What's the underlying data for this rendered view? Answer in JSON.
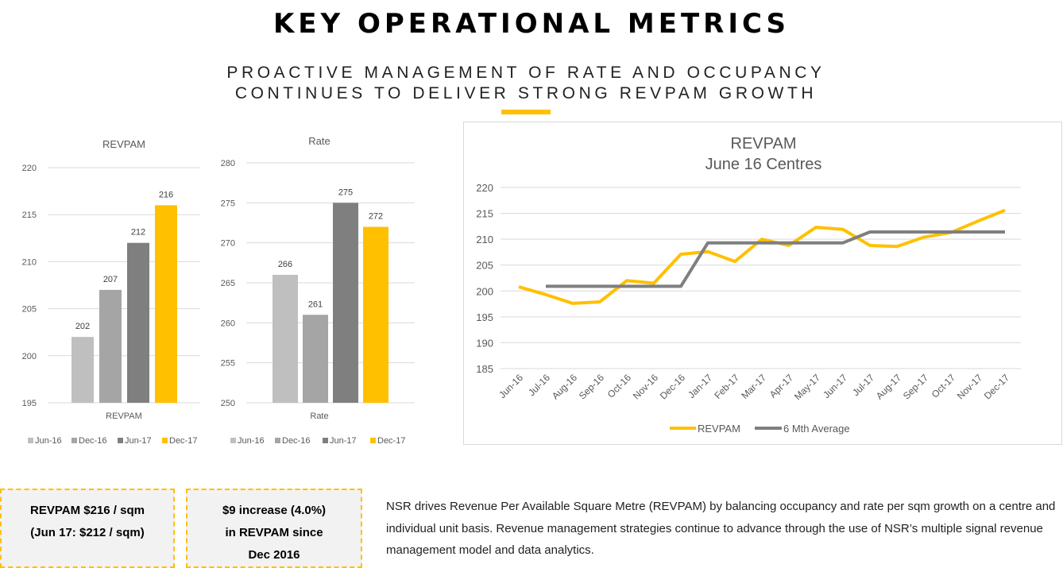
{
  "header": {
    "title": "KEY OPERATIONAL METRICS",
    "subtitle_line1": "PROACTIVE MANAGEMENT OF RATE AND OCCUPANCY",
    "subtitle_line2": "CONTINUES TO DELIVER STRONG REVPAM GROWTH"
  },
  "colors": {
    "accent": "#FFC000",
    "light_grey": "#BFBFBF",
    "mid_grey": "#A5A5A5",
    "dark_grey": "#7F7F7F",
    "line_grey": "#7F7F7F"
  },
  "chart_data": [
    {
      "type": "bar",
      "title": "REVPAM",
      "categories": [
        "REVPAM"
      ],
      "series": [
        {
          "name": "Jun-16",
          "values": [
            202
          ]
        },
        {
          "name": "Dec-16",
          "values": [
            207
          ]
        },
        {
          "name": "Jun-17",
          "values": [
            212
          ]
        },
        {
          "name": "Dec-17",
          "values": [
            216
          ]
        }
      ],
      "ylim": [
        195,
        220
      ],
      "yticks": [
        195,
        200,
        205,
        210,
        215,
        220
      ],
      "grid": true,
      "legend": "bottom"
    },
    {
      "type": "bar",
      "title": "Rate",
      "categories": [
        "Rate"
      ],
      "series": [
        {
          "name": "Jun-16",
          "values": [
            266
          ]
        },
        {
          "name": "Dec-16",
          "values": [
            261
          ]
        },
        {
          "name": "Jun-17",
          "values": [
            275
          ]
        },
        {
          "name": "Dec-17",
          "values": [
            272
          ]
        }
      ],
      "ylim": [
        250,
        280
      ],
      "yticks": [
        250,
        255,
        260,
        265,
        270,
        275,
        280
      ],
      "grid": true,
      "legend": "bottom"
    },
    {
      "type": "line",
      "title": "REVPAM",
      "subtitle": "June 16 Centres",
      "x": [
        "Jun-16",
        "Jul-16",
        "Aug-16",
        "Sep-16",
        "Oct-16",
        "Nov-16",
        "Dec-16",
        "Jan-17",
        "Feb-17",
        "Mar-17",
        "Apr-17",
        "May-17",
        "Jun-17",
        "Jul-17",
        "Aug-17",
        "Sep-17",
        "Oct-17",
        "Nov-17",
        "Dec-17"
      ],
      "series": [
        {
          "name": "REVPAM",
          "values": [
            200.8,
            199.3,
            197.6,
            197.9,
            202.0,
            201.5,
            207.1,
            207.6,
            205.7,
            210.0,
            208.8,
            212.3,
            211.9,
            208.8,
            208.6,
            210.4,
            211.3,
            213.5,
            215.6
          ]
        },
        {
          "name": "6 Mth Average",
          "values": [
            null,
            200.9,
            200.9,
            200.9,
            200.9,
            200.9,
            200.9,
            209.3,
            209.3,
            209.3,
            209.3,
            209.3,
            209.3,
            211.4,
            211.4,
            211.4,
            211.4,
            211.4,
            211.4
          ]
        }
      ],
      "ylim": [
        185,
        220
      ],
      "yticks": [
        185,
        190,
        195,
        200,
        205,
        210,
        215,
        220
      ],
      "grid": true,
      "legend": "bottom"
    }
  ],
  "boxes": [
    {
      "line1": "REVPAM $216 / sqm",
      "line2": "(Jun 17: $212 / sqm)",
      "line3": ""
    },
    {
      "line1": "$9 increase (4.0%)",
      "line2": "in REVPAM since",
      "line3": "Dec 2016"
    }
  ],
  "description": "NSR drives Revenue Per Available Square Metre (REVPAM) by balancing occupancy and rate per sqm growth on a centre and individual unit basis. Revenue management strategies continue to advance through the use of NSR’s multiple signal revenue management model and data analytics."
}
